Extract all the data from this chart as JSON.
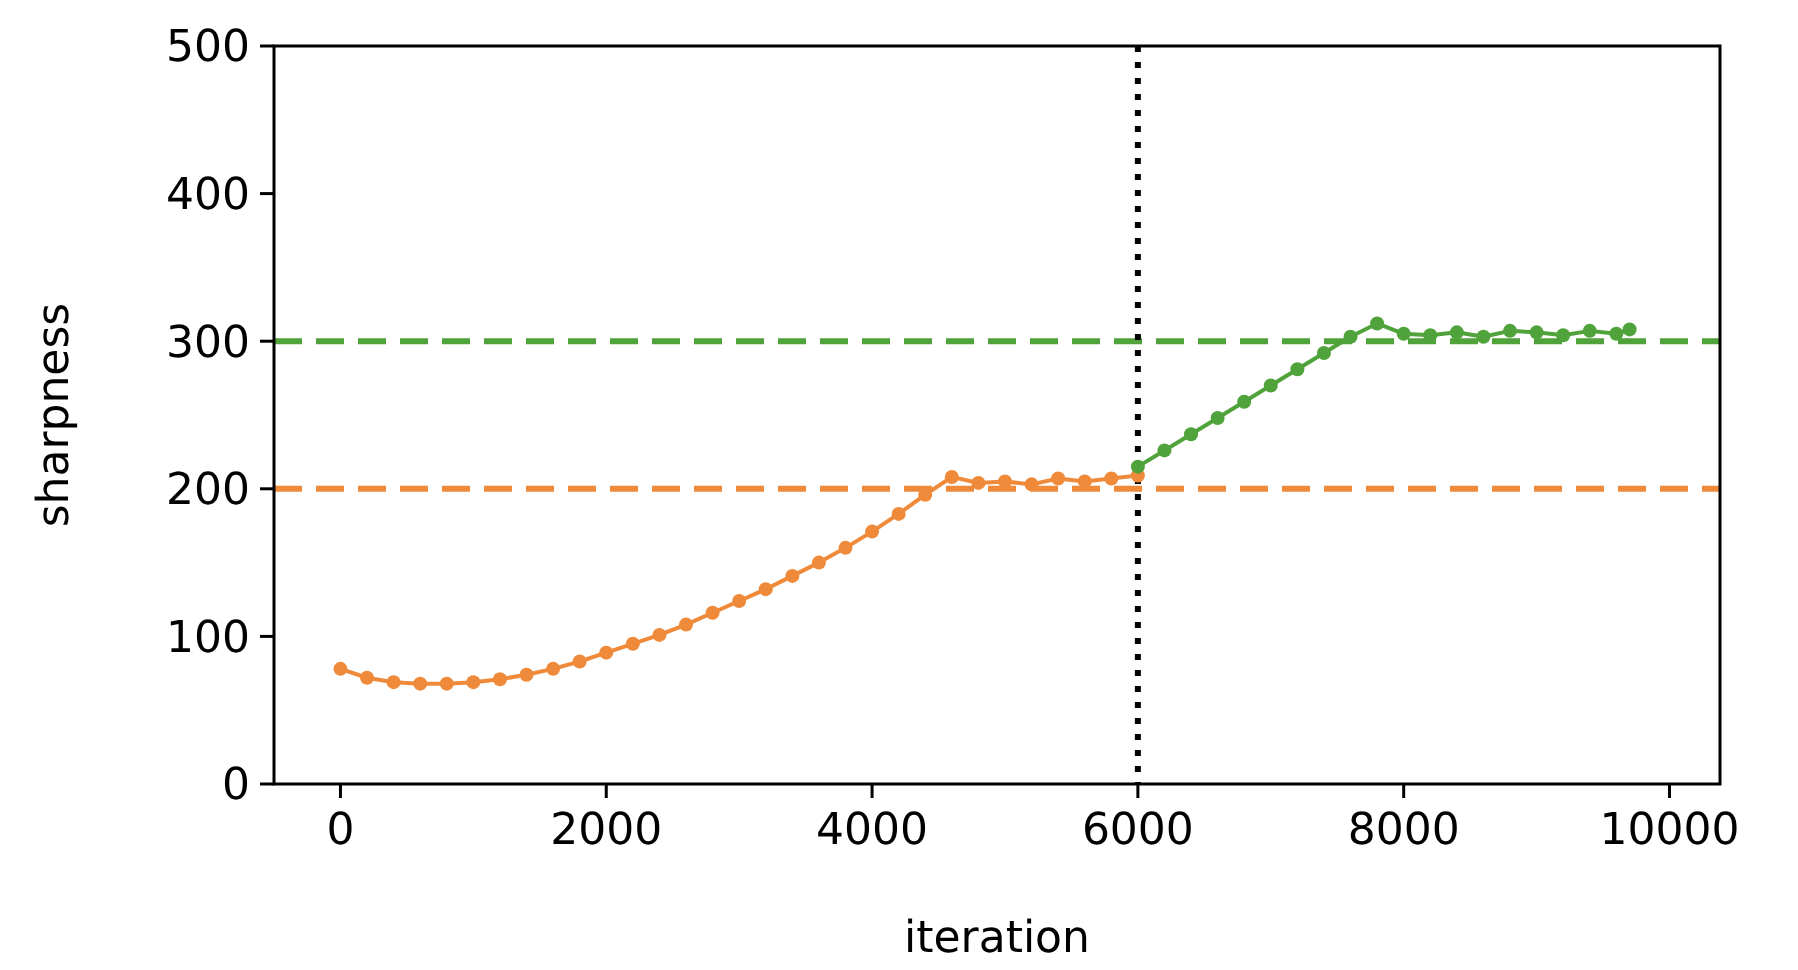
{
  "chart_data": {
    "type": "line",
    "xlabel": "iteration",
    "ylabel": "sharpness",
    "xlim": [
      -500,
      10380
    ],
    "xticks": [
      0,
      2000,
      4000,
      6000,
      8000,
      10000
    ],
    "ylim": [
      0,
      500
    ],
    "yticks": [
      0,
      100,
      200,
      300,
      400,
      500
    ],
    "grid": false,
    "marker": "circle",
    "line_style": "solid",
    "series": [
      {
        "color": "#ef8a3a",
        "x": [
          0,
          200,
          400,
          600,
          800,
          1000,
          1200,
          1400,
          1600,
          1800,
          2000,
          2200,
          2400,
          2600,
          2800,
          3000,
          3200,
          3400,
          3600,
          3800,
          4000,
          4200,
          4400,
          4600,
          4800,
          5000,
          5200,
          5400,
          5600,
          5800,
          6000
        ],
        "values": [
          78,
          72,
          69,
          68,
          68,
          69,
          71,
          74,
          78,
          83,
          89,
          95,
          101,
          108,
          116,
          124,
          132,
          141,
          150,
          160,
          171,
          183,
          196,
          208,
          204,
          205,
          203,
          207,
          205,
          207,
          209
        ]
      },
      {
        "color": "#4fa33a",
        "x": [
          6000,
          6200,
          6400,
          6600,
          6800,
          7000,
          7200,
          7400,
          7600,
          7800,
          8000,
          8200,
          8400,
          8600,
          8800,
          9000,
          9200,
          9400,
          9600,
          9700
        ],
        "values": [
          215,
          226,
          237,
          248,
          259,
          270,
          281,
          292,
          303,
          312,
          305,
          304,
          306,
          303,
          307,
          306,
          304,
          307,
          305,
          308
        ]
      }
    ],
    "ref_lines": [
      {
        "axis": "y",
        "value": 200,
        "color": "#ef8a3a",
        "line_style": "dashed"
      },
      {
        "axis": "y",
        "value": 300,
        "color": "#4fa33a",
        "line_style": "dashed"
      },
      {
        "axis": "x",
        "value": 6000,
        "color": "#000000",
        "line_style": "dotted"
      }
    ]
  }
}
